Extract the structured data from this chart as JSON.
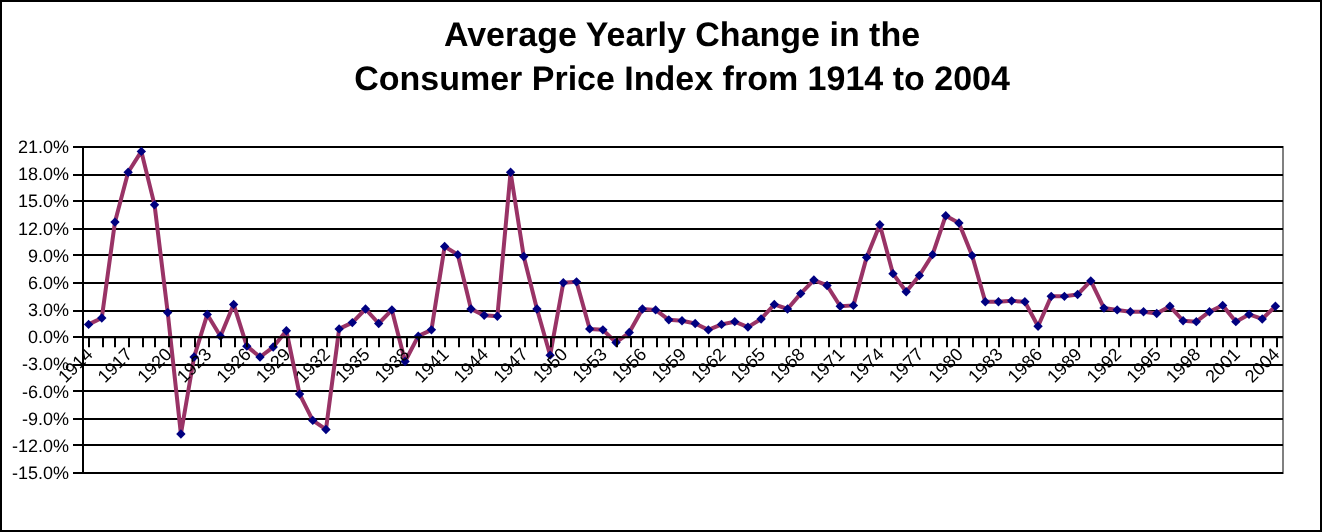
{
  "chart_data": {
    "type": "line",
    "title": "Average Yearly Change in the\nConsumer Price Index from 1914 to 2004",
    "categories": [
      "1914",
      null,
      null,
      "1917",
      null,
      null,
      "1920",
      null,
      null,
      "1923",
      null,
      null,
      "1926",
      null,
      null,
      "1929",
      null,
      null,
      "1932",
      null,
      null,
      "1935",
      null,
      null,
      "1938",
      null,
      null,
      "1941",
      null,
      null,
      "1944",
      null,
      null,
      "1947",
      null,
      null,
      "1950",
      null,
      null,
      "1953",
      null,
      null,
      "1956",
      null,
      null,
      "1959",
      null,
      null,
      "1962",
      null,
      null,
      "1965",
      null,
      null,
      "1968",
      null,
      null,
      "1971",
      null,
      null,
      "1974",
      null,
      null,
      "1977",
      null,
      null,
      "1980",
      null,
      null,
      "1983",
      null,
      null,
      "1986",
      null,
      null,
      "1989",
      null,
      null,
      "1992",
      null,
      null,
      "1995",
      null,
      null,
      "1998",
      null,
      null,
      "2001",
      null,
      null,
      "2004"
    ],
    "series": [
      {
        "color": "#993366",
        "values": [
          1.3,
          2.0,
          12.6,
          18.1,
          20.4,
          14.5,
          2.6,
          -10.8,
          -2.3,
          2.4,
          0.0,
          3.5,
          -1.1,
          -2.3,
          -1.2,
          0.6,
          -6.4,
          -9.3,
          -10.3,
          0.8,
          1.5,
          3.0,
          1.4,
          2.9,
          -2.8,
          0.0,
          0.7,
          9.9,
          9.0,
          3.0,
          2.3,
          2.2,
          18.1,
          8.8,
          3.0,
          -2.1,
          5.9,
          6.0,
          0.8,
          0.7,
          -0.7,
          0.4,
          3.0,
          2.9,
          1.8,
          1.7,
          1.4,
          0.7,
          1.3,
          1.6,
          1.0,
          1.9,
          3.5,
          3.0,
          4.7,
          6.2,
          5.6,
          3.3,
          3.4,
          8.7,
          12.3,
          6.9,
          4.9,
          6.7,
          9.0,
          13.3,
          12.5,
          8.9,
          3.8,
          3.8,
          3.9,
          3.8,
          1.1,
          4.4,
          4.4,
          4.6,
          6.1,
          3.1,
          2.9,
          2.7,
          2.7,
          2.5,
          3.3,
          1.7,
          1.6,
          2.7,
          3.4,
          1.6,
          2.4,
          1.9,
          3.3
        ]
      }
    ],
    "ylim": [
      -15,
      21
    ],
    "yticks": [
      {
        "value": -15,
        "label": "-15.0%"
      },
      {
        "value": -12,
        "label": "-12.0%"
      },
      {
        "value": -9,
        "label": "-9.0%"
      },
      {
        "value": -6,
        "label": "-6.0%"
      },
      {
        "value": -3,
        "label": "-3.0%"
      },
      {
        "value": 0,
        "label": "0.0%"
      },
      {
        "value": 3,
        "label": "3.0%"
      },
      {
        "value": 6,
        "label": "6.0%"
      },
      {
        "value": 9,
        "label": "9.0%"
      },
      {
        "value": 12,
        "label": "12.0%"
      },
      {
        "value": 15,
        "label": "15.0%"
      },
      {
        "value": 18,
        "label": "18.0%"
      },
      {
        "value": 21,
        "label": "21.0%"
      }
    ],
    "grid": "y",
    "marker": "diamond",
    "line_style": "solid"
  }
}
